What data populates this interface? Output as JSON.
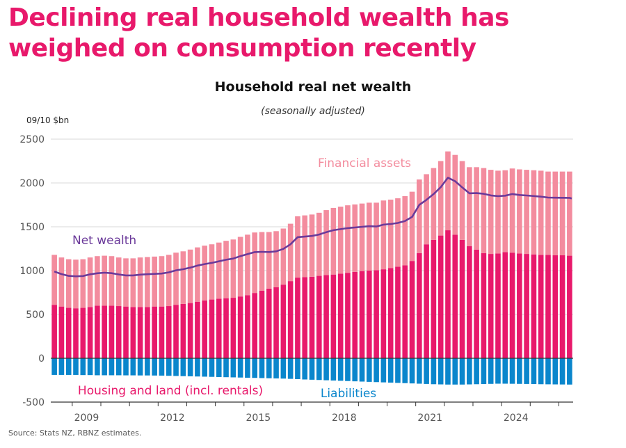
{
  "headline": "Declining real household wealth has weighed on consumption recently",
  "source": "Source: Stats NZ, RBNZ estimates.",
  "colors": {
    "headline": "#e8196b",
    "financial": "#f38c9e",
    "housing": "#e8196b",
    "liabilities": "#0a86cc",
    "net_wealth": "#6b3a9a"
  },
  "chart_data": {
    "type": "bar",
    "stacked": true,
    "title": "Household real net wealth",
    "subtitle": "(seasonally adjusted)",
    "unit": "09/10 $bn",
    "ylim": [
      -500,
      2500
    ],
    "yticks": [
      2500,
      2000,
      1500,
      1000,
      500,
      0,
      -500
    ],
    "xtick_labels": [
      "2009",
      "2012",
      "2015",
      "2018",
      "2021",
      "2024"
    ],
    "xtick_first_quarter": 3,
    "start_quarter": "2008Q2",
    "grid": "horizontal",
    "series": [
      {
        "key": "housing",
        "name": "Housing and land (incl. rentals)",
        "type": "bar",
        "values": [
          610,
          590,
          575,
          570,
          575,
          585,
          600,
          600,
          600,
          595,
          590,
          585,
          585,
          585,
          590,
          590,
          595,
          610,
          620,
          630,
          645,
          660,
          670,
          680,
          685,
          690,
          705,
          720,
          745,
          770,
          795,
          810,
          840,
          880,
          920,
          925,
          930,
          940,
          950,
          955,
          965,
          975,
          985,
          995,
          1000,
          1005,
          1015,
          1030,
          1045,
          1060,
          1110,
          1200,
          1300,
          1350,
          1400,
          1460,
          1410,
          1350,
          1280,
          1240,
          1200,
          1190,
          1195,
          1210,
          1205,
          1195,
          1190,
          1185,
          1180,
          1180,
          1175,
          1175,
          1170
        ]
      },
      {
        "key": "financial",
        "name": "Financial assets",
        "type": "bar",
        "values": [
          570,
          560,
          555,
          555,
          555,
          565,
          565,
          570,
          565,
          555,
          550,
          555,
          565,
          570,
          570,
          575,
          585,
          595,
          600,
          610,
          620,
          625,
          630,
          640,
          655,
          665,
          680,
          690,
          690,
          670,
          645,
          640,
          640,
          655,
          700,
          705,
          710,
          720,
          740,
          760,
          765,
          770,
          770,
          770,
          775,
          770,
          785,
          780,
          780,
          790,
          790,
          840,
          800,
          820,
          850,
          900,
          910,
          900,
          900,
          940,
          970,
          960,
          945,
          935,
          960,
          960,
          960,
          960,
          960,
          950,
          955,
          955,
          960
        ]
      },
      {
        "key": "liabilities",
        "name": "Liabilities",
        "type": "bar",
        "values": [
          -190,
          -190,
          -190,
          -190,
          -192,
          -192,
          -194,
          -194,
          -194,
          -194,
          -195,
          -195,
          -196,
          -196,
          -197,
          -198,
          -200,
          -202,
          -204,
          -206,
          -208,
          -210,
          -212,
          -214,
          -216,
          -218,
          -220,
          -222,
          -224,
          -226,
          -228,
          -230,
          -232,
          -235,
          -238,
          -242,
          -245,
          -248,
          -251,
          -254,
          -257,
          -260,
          -263,
          -266,
          -269,
          -272,
          -275,
          -278,
          -281,
          -284,
          -287,
          -290,
          -293,
          -296,
          -298,
          -300,
          -300,
          -300,
          -298,
          -296,
          -294,
          -292,
          -290,
          -290,
          -291,
          -292,
          -293,
          -294,
          -296,
          -297,
          -298,
          -299,
          -300
        ]
      },
      {
        "key": "net_wealth",
        "name": "Net wealth",
        "type": "line",
        "values": [
          990,
          960,
          940,
          935,
          938,
          958,
          970,
          976,
          971,
          956,
          945,
          945,
          954,
          959,
          963,
          967,
          980,
          1003,
          1016,
          1034,
          1057,
          1075,
          1088,
          1106,
          1124,
          1137,
          1165,
          1188,
          1211,
          1214,
          1212,
          1220,
          1248,
          1300,
          1382,
          1388,
          1395,
          1412,
          1439,
          1461,
          1473,
          1485,
          1492,
          1499,
          1506,
          1503,
          1525,
          1532,
          1544,
          1566,
          1613,
          1750,
          1807,
          1874,
          1952,
          2060,
          2020,
          1950,
          1882,
          1884,
          1876,
          1858,
          1850,
          1855,
          1874,
          1863,
          1857,
          1851,
          1844,
          1833,
          1832,
          1831,
          1830
        ]
      }
    ],
    "annotations": [
      {
        "key": "financial",
        "text": "Financial assets"
      },
      {
        "key": "net_wealth",
        "text": "Net wealth"
      },
      {
        "key": "housing",
        "text": "Housing and land (incl. rentals)"
      },
      {
        "key": "liabilities",
        "text": "Liabilities"
      }
    ]
  }
}
